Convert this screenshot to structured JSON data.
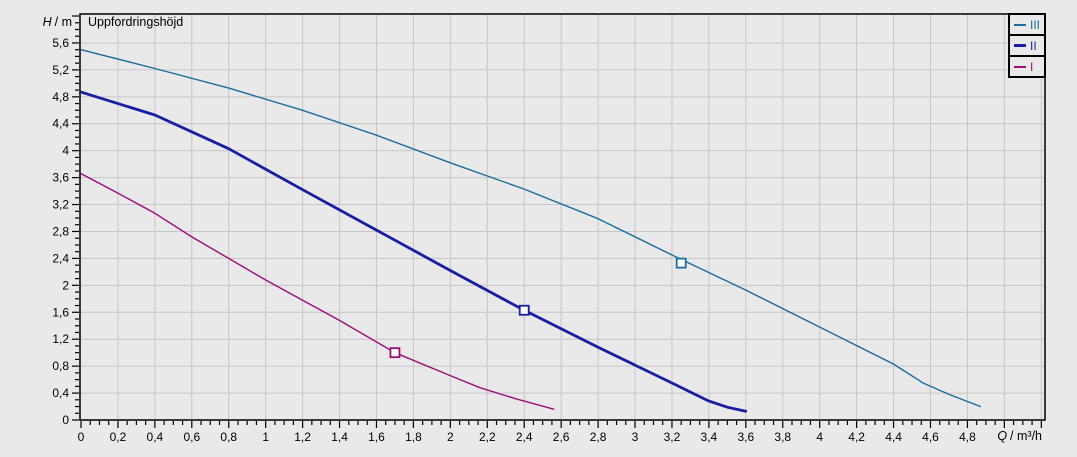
{
  "chart_data": {
    "type": "line",
    "title": "Uppfordringshöjd",
    "x_axis": {
      "symbol": "Q",
      "unit": "/ m³/h",
      "min": 0,
      "max": 5.22,
      "major_step": 0.2,
      "minor_step": 0.05,
      "tick_labels": [
        "0",
        "0,2",
        "0,4",
        "0,6",
        "0,8",
        "1",
        "1,2",
        "1,4",
        "1,6",
        "1,8",
        "2",
        "2,2",
        "2,4",
        "2,6",
        "2,8",
        "3",
        "3,2",
        "3,4",
        "3,6",
        "3,8",
        "4",
        "4,2",
        "4,4",
        "4,6",
        "4,8"
      ]
    },
    "y_axis": {
      "symbol": "H",
      "unit": "/ m",
      "min": 0,
      "max": 6.03,
      "major_step": 0.4,
      "minor_step": 0.1,
      "tick_labels": [
        "0",
        "0,4",
        "0,8",
        "1,2",
        "1,6",
        "2",
        "2,4",
        "2,8",
        "3,2",
        "3,6",
        "4",
        "4,4",
        "4,8",
        "5,2",
        "5,6"
      ]
    },
    "grid": "on",
    "legend": {
      "position": "top-right",
      "entries": [
        {
          "label": "III"
        },
        {
          "label": "II"
        },
        {
          "label": "I"
        }
      ]
    },
    "series": [
      {
        "name": "III",
        "color": "#1a6e9e",
        "width": 1.4,
        "points": [
          [
            0,
            5.5
          ],
          [
            0.4,
            5.22
          ],
          [
            0.8,
            4.93
          ],
          [
            1.2,
            4.6
          ],
          [
            1.6,
            4.23
          ],
          [
            2.0,
            3.82
          ],
          [
            2.4,
            3.43
          ],
          [
            2.8,
            2.99
          ],
          [
            3.2,
            2.45
          ],
          [
            3.6,
            1.93
          ],
          [
            4.0,
            1.38
          ],
          [
            4.4,
            0.83
          ],
          [
            4.56,
            0.55
          ],
          [
            4.7,
            0.38
          ],
          [
            4.87,
            0.2
          ]
        ],
        "duty_point": [
          3.25,
          2.33
        ]
      },
      {
        "name": "II",
        "color": "#181fa3",
        "width": 2.8,
        "points": [
          [
            0,
            4.87
          ],
          [
            0.4,
            4.53
          ],
          [
            0.8,
            4.03
          ],
          [
            1.2,
            3.42
          ],
          [
            1.6,
            2.82
          ],
          [
            2.0,
            2.22
          ],
          [
            2.4,
            1.63
          ],
          [
            2.8,
            1.08
          ],
          [
            3.2,
            0.55
          ],
          [
            3.4,
            0.28
          ],
          [
            3.5,
            0.19
          ],
          [
            3.6,
            0.13
          ]
        ],
        "duty_point": [
          2.4,
          1.63
        ]
      },
      {
        "name": "I",
        "color": "#9c0d7a",
        "width": 1.4,
        "points": [
          [
            0,
            3.66
          ],
          [
            0.2,
            3.37
          ],
          [
            0.4,
            3.07
          ],
          [
            0.6,
            2.72
          ],
          [
            0.8,
            2.4
          ],
          [
            1.0,
            2.08
          ],
          [
            1.2,
            1.78
          ],
          [
            1.4,
            1.48
          ],
          [
            1.7,
            1.0
          ],
          [
            2.0,
            0.66
          ],
          [
            2.16,
            0.48
          ],
          [
            2.36,
            0.31
          ],
          [
            2.56,
            0.16
          ]
        ],
        "duty_point": [
          1.7,
          1.0
        ]
      }
    ],
    "colors": {
      "background": "#e9e9e9",
      "grid": "#c6c6c6",
      "border": "#000000",
      "text": "#000000"
    }
  }
}
